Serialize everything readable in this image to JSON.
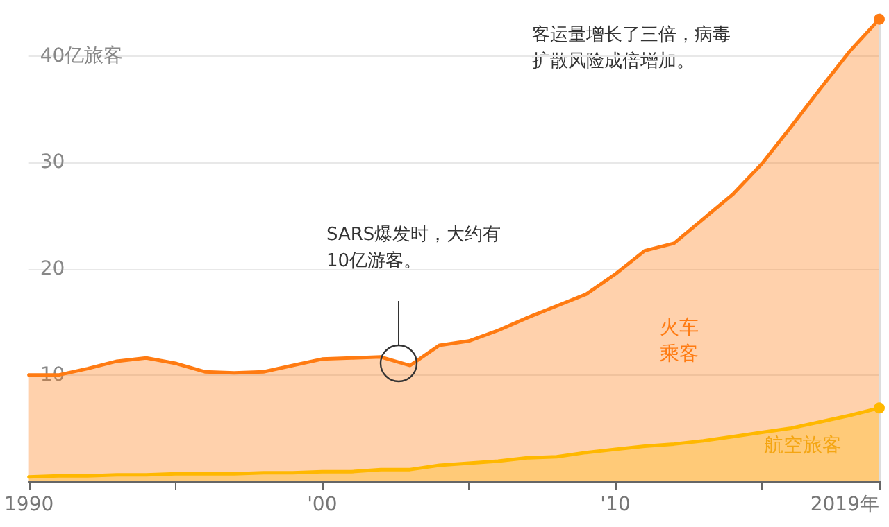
{
  "chart_data": {
    "type": "area",
    "x": [
      1990,
      1991,
      1992,
      1993,
      1994,
      1995,
      1996,
      1997,
      1998,
      1999,
      2000,
      2001,
      2002,
      2003,
      2004,
      2005,
      2006,
      2007,
      2008,
      2009,
      2010,
      2011,
      2012,
      2013,
      2014,
      2015,
      2016,
      2017,
      2018,
      2019
    ],
    "series": [
      {
        "name": "火车乘客",
        "color": "#ff7b12",
        "values": [
          10.0,
          10.0,
          10.6,
          11.3,
          11.6,
          11.1,
          10.3,
          10.2,
          10.3,
          10.9,
          11.5,
          11.6,
          11.7,
          10.9,
          12.8,
          13.2,
          14.2,
          15.4,
          16.5,
          17.6,
          19.5,
          21.7,
          22.4,
          24.7,
          27.0,
          29.9,
          33.4,
          37.0,
          40.5,
          43.5
        ]
      },
      {
        "name": "航空旅客",
        "color": "#ffb800",
        "values": [
          0.4,
          0.5,
          0.5,
          0.6,
          0.6,
          0.7,
          0.7,
          0.7,
          0.8,
          0.8,
          0.9,
          0.9,
          1.1,
          1.1,
          1.5,
          1.7,
          1.9,
          2.2,
          2.3,
          2.7,
          3.0,
          3.3,
          3.5,
          3.8,
          4.2,
          4.6,
          5.0,
          5.6,
          6.2,
          6.9
        ]
      }
    ],
    "xlim": [
      1990,
      2019
    ],
    "xticks": [
      1990,
      {
        "value": 1995,
        "label": null
      },
      {
        "value": 2000,
        "label": "'00"
      },
      {
        "value": 2005,
        "label": null
      },
      {
        "value": 2010,
        "label": "'10"
      },
      {
        "value": 2015,
        "label": null
      },
      {
        "value": 2019,
        "label": "2019年"
      }
    ],
    "ylim": [
      0,
      44
    ],
    "yticks": [
      {
        "value": 0,
        "label": null
      },
      10,
      20,
      30,
      {
        "value": 40,
        "label": "40亿旅客"
      }
    ],
    "grid": "y",
    "annotations": [
      "SARS爆发时，大约有10亿游客。",
      "客运量增长了三倍，病毒扩散风险成倍增加。"
    ]
  }
}
